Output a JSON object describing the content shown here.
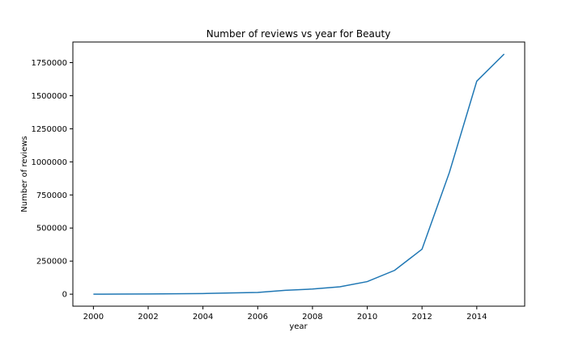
{
  "chart_data": {
    "type": "line",
    "title": "Number of reviews vs year for Beauty",
    "xlabel": "year",
    "ylabel": "Number of reviews",
    "x": [
      2000,
      2001,
      2002,
      2003,
      2004,
      2005,
      2006,
      2007,
      2008,
      2009,
      2010,
      2011,
      2012,
      2013,
      2014,
      2015
    ],
    "series": [
      {
        "color": "#1f77b4",
        "values": [
          0,
          500,
          1500,
          3000,
          5000,
          9000,
          13000,
          29000,
          39000,
          56000,
          95000,
          180000,
          340000,
          920000,
          1610000,
          1815000
        ]
      }
    ],
    "xlim": [
      1999.25,
      2015.75
    ],
    "ylim": [
      -90750,
      1905750
    ],
    "x_ticks": [
      2000,
      2002,
      2004,
      2006,
      2008,
      2010,
      2012,
      2014
    ],
    "x_tick_labels": [
      "2000",
      "2002",
      "2004",
      "2006",
      "2008",
      "2010",
      "2012",
      "2014"
    ],
    "y_ticks": [
      0,
      250000,
      500000,
      750000,
      1000000,
      1250000,
      1500000,
      1750000
    ],
    "y_tick_labels": [
      "0",
      "250000",
      "500000",
      "750000",
      "1000000",
      "1250000",
      "1500000",
      "1750000"
    ],
    "grid": false,
    "legend": "none"
  }
}
